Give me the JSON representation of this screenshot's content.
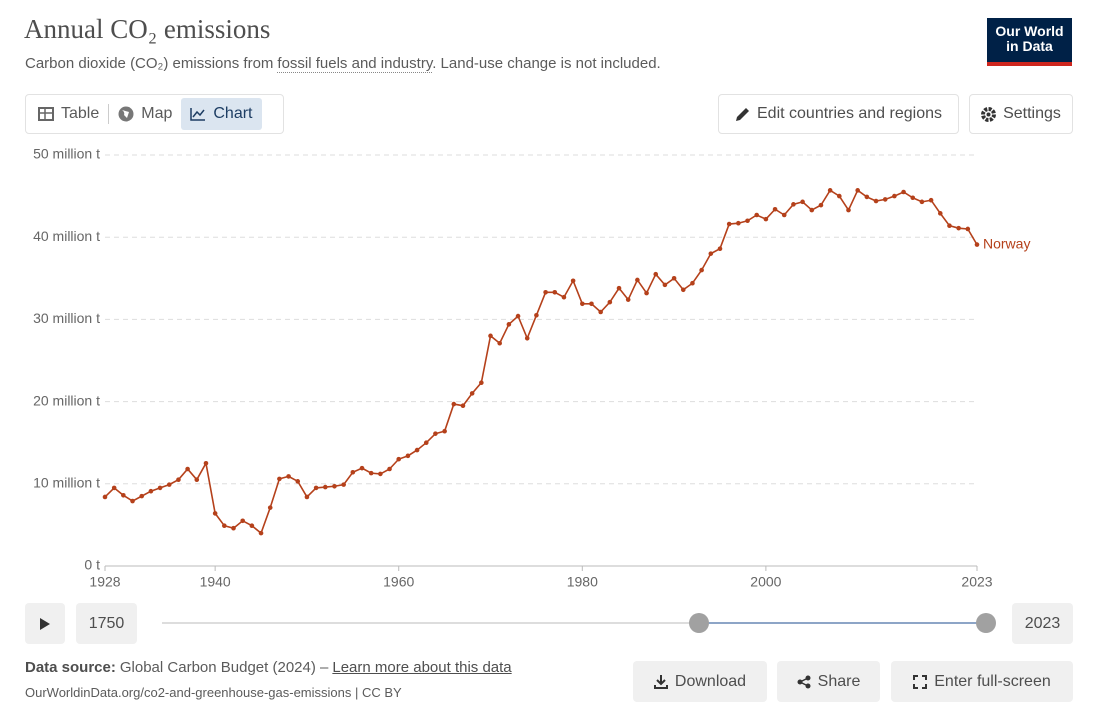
{
  "header": {
    "title": "Annual CO₂ emissions",
    "subtitle": [
      "Carbon dioxide (CO₂) emissions from",
      "fossil fuels and industry",
      ". Land-use change is not included."
    ],
    "logo": [
      "Our World",
      "in Data"
    ]
  },
  "toolbar": {
    "tabs": [
      "Table",
      "Map",
      "Chart"
    ],
    "edit_button": "Edit countries and regions",
    "settings_button": "Settings"
  },
  "timeline": {
    "start": "1750",
    "end": "2023"
  },
  "footer": {
    "source_label": "Data source:",
    "source": "Global Carbon Budget (2024) –",
    "source_link": "Learn more about this data",
    "url": "OurWorldinData.org/co2-and-greenhouse-gas-emissions | CC BY",
    "buttons": [
      "Download",
      "Share",
      "Enter full-screen"
    ]
  },
  "chart_data": {
    "type": "line",
    "x": [
      1928,
      1929,
      1930,
      1931,
      1932,
      1933,
      1934,
      1935,
      1936,
      1937,
      1938,
      1939,
      1940,
      1941,
      1942,
      1943,
      1944,
      1945,
      1946,
      1947,
      1948,
      1949,
      1950,
      1951,
      1952,
      1953,
      1954,
      1955,
      1956,
      1957,
      1958,
      1959,
      1960,
      1961,
      1962,
      1963,
      1964,
      1965,
      1966,
      1967,
      1968,
      1969,
      1970,
      1971,
      1972,
      1973,
      1974,
      1975,
      1976,
      1977,
      1978,
      1979,
      1980,
      1981,
      1982,
      1983,
      1984,
      1985,
      1986,
      1987,
      1988,
      1989,
      1990,
      1991,
      1992,
      1993,
      1994,
      1995,
      1996,
      1997,
      1998,
      1999,
      2000,
      2001,
      2002,
      2003,
      2004,
      2005,
      2006,
      2007,
      2008,
      2009,
      2010,
      2011,
      2012,
      2013,
      2014,
      2015,
      2016,
      2017,
      2018,
      2019,
      2020,
      2021,
      2022,
      2023
    ],
    "series": [
      {
        "name": "Norway",
        "color": "#b5411b",
        "values": [
          8.4,
          9.5,
          8.6,
          7.9,
          8.5,
          9.1,
          9.5,
          9.9,
          10.5,
          11.8,
          10.5,
          12.5,
          6.4,
          4.9,
          4.6,
          5.5,
          4.9,
          4.0,
          7.1,
          10.6,
          10.9,
          10.3,
          8.4,
          9.5,
          9.6,
          9.7,
          9.9,
          11.4,
          11.9,
          11.3,
          11.2,
          11.8,
          13.0,
          13.4,
          14.1,
          15.0,
          16.1,
          16.4,
          19.7,
          19.5,
          21.0,
          22.3,
          28.0,
          27.1,
          29.4,
          30.4,
          27.7,
          30.5,
          33.3,
          33.3,
          32.7,
          34.7,
          31.9,
          31.9,
          30.9,
          32.1,
          33.8,
          32.4,
          34.8,
          33.2,
          35.5,
          34.2,
          35.0,
          33.6,
          34.4,
          36.0,
          38.0,
          38.6,
          41.6,
          41.7,
          42.0,
          42.7,
          42.2,
          43.4,
          42.7,
          44.0,
          44.3,
          43.3,
          43.9,
          45.7,
          45.0,
          43.3,
          45.7,
          44.9,
          44.4,
          44.6,
          45.0,
          45.5,
          44.8,
          44.3,
          44.5,
          42.9,
          41.4,
          41.1,
          41.0,
          39.1
        ]
      }
    ],
    "xlim": [
      1928,
      2023
    ],
    "xticks": [
      1928,
      1940,
      1960,
      1980,
      2000,
      2023
    ],
    "ylim": [
      0,
      50
    ],
    "yticks": [
      {
        "value": 0,
        "label": "0 t"
      },
      {
        "value": 10,
        "label": "10 million t"
      },
      {
        "value": 20,
        "label": "20 million t"
      },
      {
        "value": 30,
        "label": "30 million t"
      },
      {
        "value": 40,
        "label": "40 million t"
      },
      {
        "value": 50,
        "label": "50 million t"
      }
    ],
    "grid": true
  }
}
